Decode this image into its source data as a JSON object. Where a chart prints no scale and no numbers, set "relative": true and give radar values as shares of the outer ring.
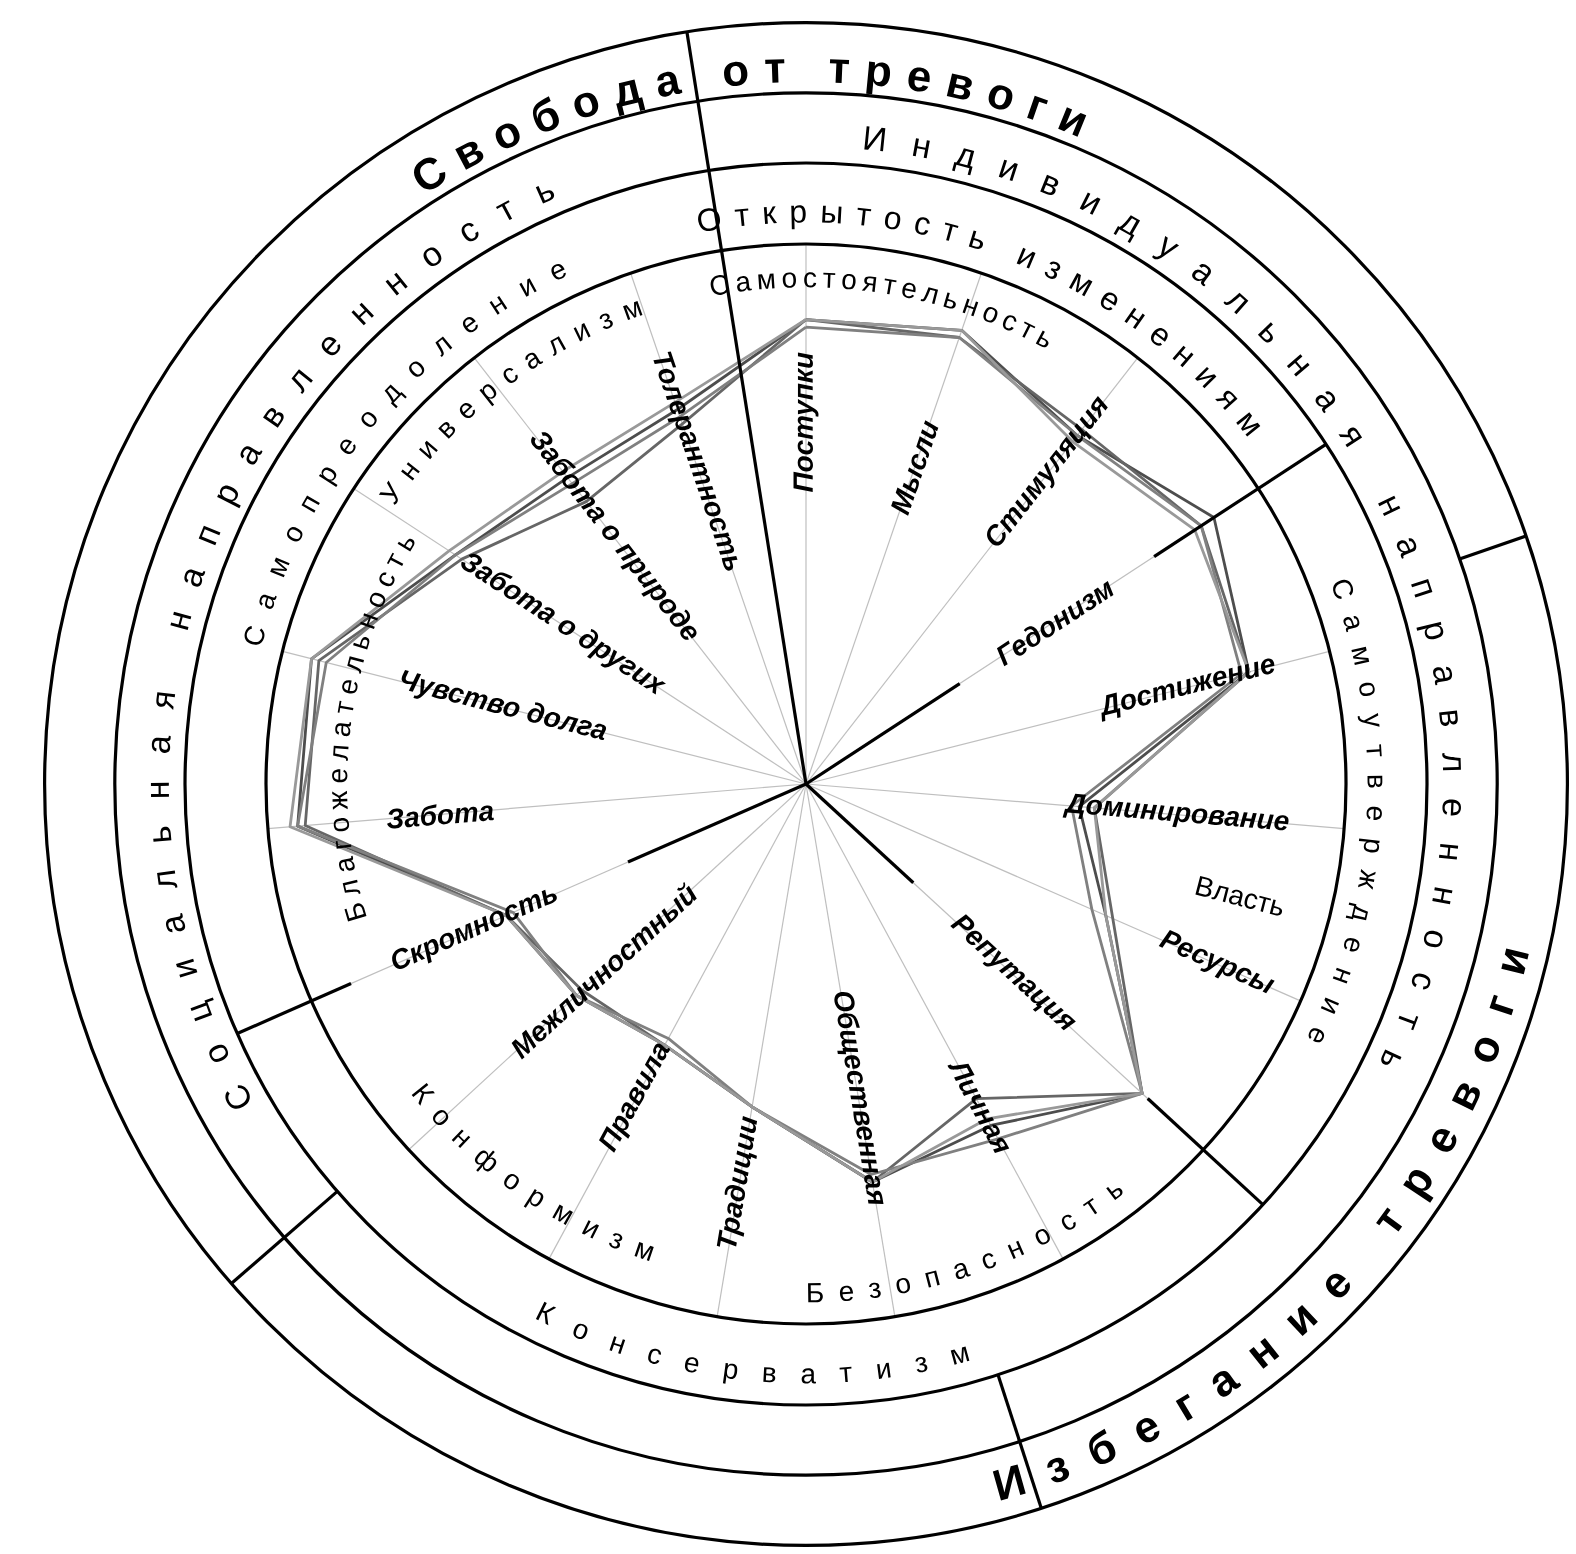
{
  "chart_data": {
    "type": "radar",
    "relative": true,
    "grid": true,
    "categories": [
      "Поступки",
      "Мысли",
      "Стимуляция",
      "Гедонизм",
      "Достижение",
      "Доминирование",
      "Ресурсы",
      "Репутация",
      "Личная",
      "Общественная",
      "Традиции",
      "Правила",
      "Межличностный",
      "Скромность",
      "Забота",
      "Чувство долга",
      "Забота о других",
      "Забота о природе",
      "Толерантность"
    ],
    "series": [
      {
        "color": "#4d4d4d",
        "values": [
          0.61,
          0.63,
          0.58,
          0.64,
          0.6,
          0.36,
          0.43,
          0.6,
          0.51,
          0.53,
          0.43,
          0.39,
          0.41,
          0.43,
          0.67,
          0.67,
          0.55,
          0.51,
          0.52
        ]
      },
      {
        "color": "#666666",
        "values": [
          0.61,
          0.62,
          0.59,
          0.62,
          0.6,
          0.38,
          0.44,
          0.6,
          0.47,
          0.53,
          0.43,
          0.39,
          0.4,
          0.43,
          0.66,
          0.66,
          0.54,
          0.47,
          0.5
        ]
      },
      {
        "color": "#808080",
        "values": [
          0.6,
          0.62,
          0.58,
          0.62,
          0.59,
          0.35,
          0.41,
          0.6,
          0.53,
          0.52,
          0.43,
          0.38,
          0.41,
          0.42,
          0.67,
          0.65,
          0.55,
          0.5,
          0.51
        ]
      },
      {
        "color": "#999999",
        "values": [
          0.61,
          0.63,
          0.57,
          0.61,
          0.6,
          0.38,
          0.43,
          0.6,
          0.5,
          0.53,
          0.43,
          0.39,
          0.41,
          0.43,
          0.68,
          0.67,
          0.56,
          0.52,
          0.53
        ]
      }
    ],
    "annotations": [
      "Самостоятельность",
      "Власть",
      "Безопасность",
      "Конформизм",
      "Благожелательность",
      "Универсализм",
      "Открытость изменениям",
      "Самоутверждение",
      "Консерватизм",
      "Самопреодоление",
      "Индивидуальная направленность",
      "Социальная направленность",
      "Свобода от тревоги",
      "Избегание тревоги"
    ]
  }
}
